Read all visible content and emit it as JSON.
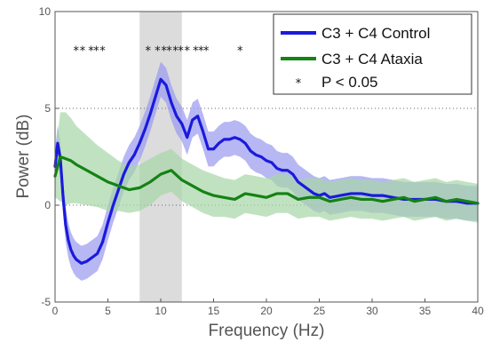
{
  "chart_data": {
    "type": "line",
    "xlabel": "Frequency (Hz)",
    "ylabel": "Power (dB)",
    "xlim": [
      0,
      40
    ],
    "ylim": [
      -5,
      10
    ],
    "x_ticks": [
      0,
      5,
      10,
      15,
      20,
      25,
      30,
      35,
      40
    ],
    "y_ticks": [
      -5,
      0,
      5,
      10
    ],
    "grid": "dotted horizontal at y = 5 and y = 10",
    "legend_position": "top-right",
    "shaded_band": {
      "x_start": 8,
      "x_end": 12,
      "color": "#dcdcdc"
    },
    "series": [
      {
        "name": "C3 + C4 Control",
        "color": "#1a1adc",
        "band_color": "#9898f0",
        "x": [
          0,
          0.25,
          0.5,
          0.75,
          1,
          1.25,
          1.5,
          1.75,
          2,
          2.5,
          3,
          3.5,
          4,
          4.5,
          5,
          5.5,
          6,
          6.5,
          7,
          7.5,
          8,
          8.5,
          9,
          9.5,
          10,
          10.5,
          11,
          11.5,
          12,
          12.5,
          13,
          13.5,
          14,
          14.5,
          15,
          15.5,
          16,
          16.5,
          17,
          17.5,
          18,
          18.5,
          19,
          19.5,
          20,
          20.5,
          21,
          21.5,
          22,
          22.5,
          23,
          23.5,
          24,
          24.5,
          25,
          25.5,
          26,
          27,
          28,
          29,
          30,
          31,
          32,
          33,
          34,
          35,
          36,
          37,
          38,
          39,
          40
        ],
        "y": [
          2.0,
          3.2,
          2.4,
          0.5,
          -1.0,
          -1.8,
          -2.3,
          -2.6,
          -2.8,
          -3.0,
          -2.9,
          -2.7,
          -2.5,
          -1.9,
          -0.9,
          0.0,
          0.8,
          1.6,
          2.2,
          2.6,
          3.2,
          3.9,
          4.7,
          5.6,
          6.5,
          6.2,
          5.3,
          4.6,
          4.2,
          3.5,
          4.4,
          4.6,
          3.8,
          2.9,
          2.9,
          3.2,
          3.4,
          3.4,
          3.5,
          3.4,
          3.2,
          2.8,
          2.6,
          2.5,
          2.3,
          2.2,
          1.9,
          1.8,
          1.8,
          1.6,
          1.2,
          1.0,
          0.8,
          0.6,
          0.5,
          0.6,
          0.4,
          0.5,
          0.6,
          0.6,
          0.5,
          0.5,
          0.4,
          0.3,
          0.3,
          0.3,
          0.3,
          0.2,
          0.2,
          0.1,
          0.1
        ],
        "err": [
          0.9,
          0.9,
          0.9,
          0.9,
          0.9,
          0.9,
          0.9,
          0.9,
          0.9,
          0.9,
          0.9,
          0.9,
          0.9,
          0.9,
          0.9,
          0.9,
          0.9,
          0.9,
          0.9,
          0.9,
          0.9,
          0.9,
          0.9,
          0.9,
          0.9,
          0.9,
          0.9,
          0.9,
          0.9,
          0.9,
          0.9,
          0.9,
          0.9,
          0.9,
          0.9,
          0.9,
          0.9,
          0.9,
          0.9,
          0.9,
          0.9,
          0.9,
          0.9,
          0.9,
          0.9,
          0.9,
          0.9,
          0.9,
          0.9,
          0.9,
          0.9,
          0.9,
          0.9,
          0.9,
          0.9,
          0.9,
          0.9,
          0.9,
          0.9,
          0.9,
          0.9,
          0.9,
          0.9,
          0.9,
          0.9,
          0.9,
          0.9,
          0.9,
          0.9,
          0.9,
          0.9
        ]
      },
      {
        "name": "C3 + C4 Ataxia",
        "color": "#148214",
        "band_color": "#a6d6a6",
        "x": [
          0,
          0.5,
          1,
          1.5,
          2,
          3,
          4,
          5,
          6,
          7,
          8,
          9,
          10,
          11,
          12,
          13,
          14,
          15,
          16,
          17,
          18,
          19,
          20,
          21,
          22,
          23,
          24,
          25,
          26,
          27,
          28,
          29,
          30,
          31,
          32,
          33,
          34,
          35,
          36,
          37,
          38,
          39,
          40
        ],
        "y": [
          1.5,
          2.5,
          2.4,
          2.3,
          2.1,
          1.8,
          1.5,
          1.2,
          1.0,
          0.8,
          0.9,
          1.2,
          1.6,
          1.8,
          1.3,
          1.0,
          0.7,
          0.5,
          0.4,
          0.3,
          0.6,
          0.5,
          0.4,
          0.6,
          0.6,
          0.3,
          0.4,
          0.4,
          0.2,
          0.3,
          0.4,
          0.3,
          0.3,
          0.2,
          0.3,
          0.4,
          0.2,
          0.3,
          0.4,
          0.2,
          0.3,
          0.2,
          0.1
        ],
        "err": [
          1.1,
          2.3,
          2.4,
          2.2,
          2.0,
          1.8,
          1.6,
          1.5,
          1.3,
          1.2,
          1.2,
          1.2,
          1.1,
          1.1,
          1.1,
          1.1,
          1.1,
          1.1,
          1.0,
          1.0,
          1.0,
          1.0,
          1.0,
          1.0,
          1.0,
          1.0,
          1.0,
          1.0,
          1.0,
          1.0,
          1.0,
          1.0,
          1.0,
          1.0,
          1.0,
          1.0,
          1.0,
          1.0,
          1.0,
          1.0,
          1.0,
          1.0,
          1.0
        ]
      }
    ],
    "significance": {
      "label": "P < 0.05",
      "symbol": "*",
      "y": 8,
      "x": [
        2.0,
        2.6,
        3.4,
        3.9,
        4.5,
        8.8,
        9.7,
        10.3,
        10.8,
        11.4,
        11.9,
        12.5,
        13.3,
        13.8,
        14.3,
        17.5
      ]
    }
  }
}
